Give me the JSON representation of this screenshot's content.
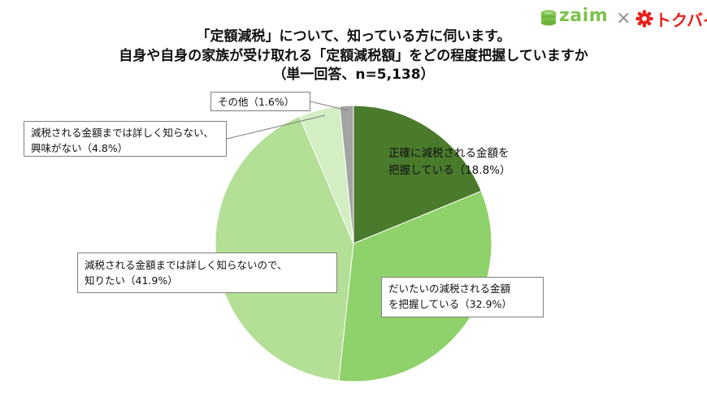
{
  "header": {
    "title_line1": "「定額減税」について、知っている方に伺います。",
    "title_line2": "自身や自身の家族が受け取れる「定額減税額」をどの程度把握していますか",
    "title_line3": "（単一回答、n=5,138）"
  },
  "logos": {
    "zaim": "zaim",
    "cross": "×",
    "tokubai": "トクバイ",
    "zaim_color": "#7cc24b",
    "tokubai_color": "#e8221c"
  },
  "chart_data": {
    "type": "pie",
    "title": "「定額減税」について、知っている方に伺います。自身や自身の家族が受け取れる「定額減税額」をどの程度把握していますか",
    "subtitle": "（単一回答、n=5,138）",
    "start": "12 o'clock",
    "direction": "clockwise",
    "slices": [
      {
        "label": "正確に減税される金額を把握している",
        "value": 18.8,
        "color": "#4a7a2c"
      },
      {
        "label": "だいたいの減税される金額を把握している",
        "value": 32.9,
        "color": "#8fd16a"
      },
      {
        "label": "減税される金額までは詳しく知らないので、知りたい",
        "value": 41.9,
        "color": "#b3df96"
      },
      {
        "label": "減税される金額までは詳しく知らない、興味がない",
        "value": 4.8,
        "color": "#d3eec3"
      },
      {
        "label": "その他",
        "value": 1.6,
        "color": "#a3a3a3"
      }
    ],
    "callouts": {
      "s188_l1": "正確に減税される金額を",
      "s188_l2": "把握している（18.8%）",
      "s329_l1": "だいたいの減税される金額",
      "s329_l2": "を把握している（32.9%）",
      "s419_l1": "減税される金額までは詳しく知らないので、",
      "s419_l2": "知りたい（41.9%）",
      "s48_l1": "減税される金額までは詳しく知らない、",
      "s48_l2": "興味がない（4.8%）",
      "s16": "その他（1.6%）"
    }
  }
}
